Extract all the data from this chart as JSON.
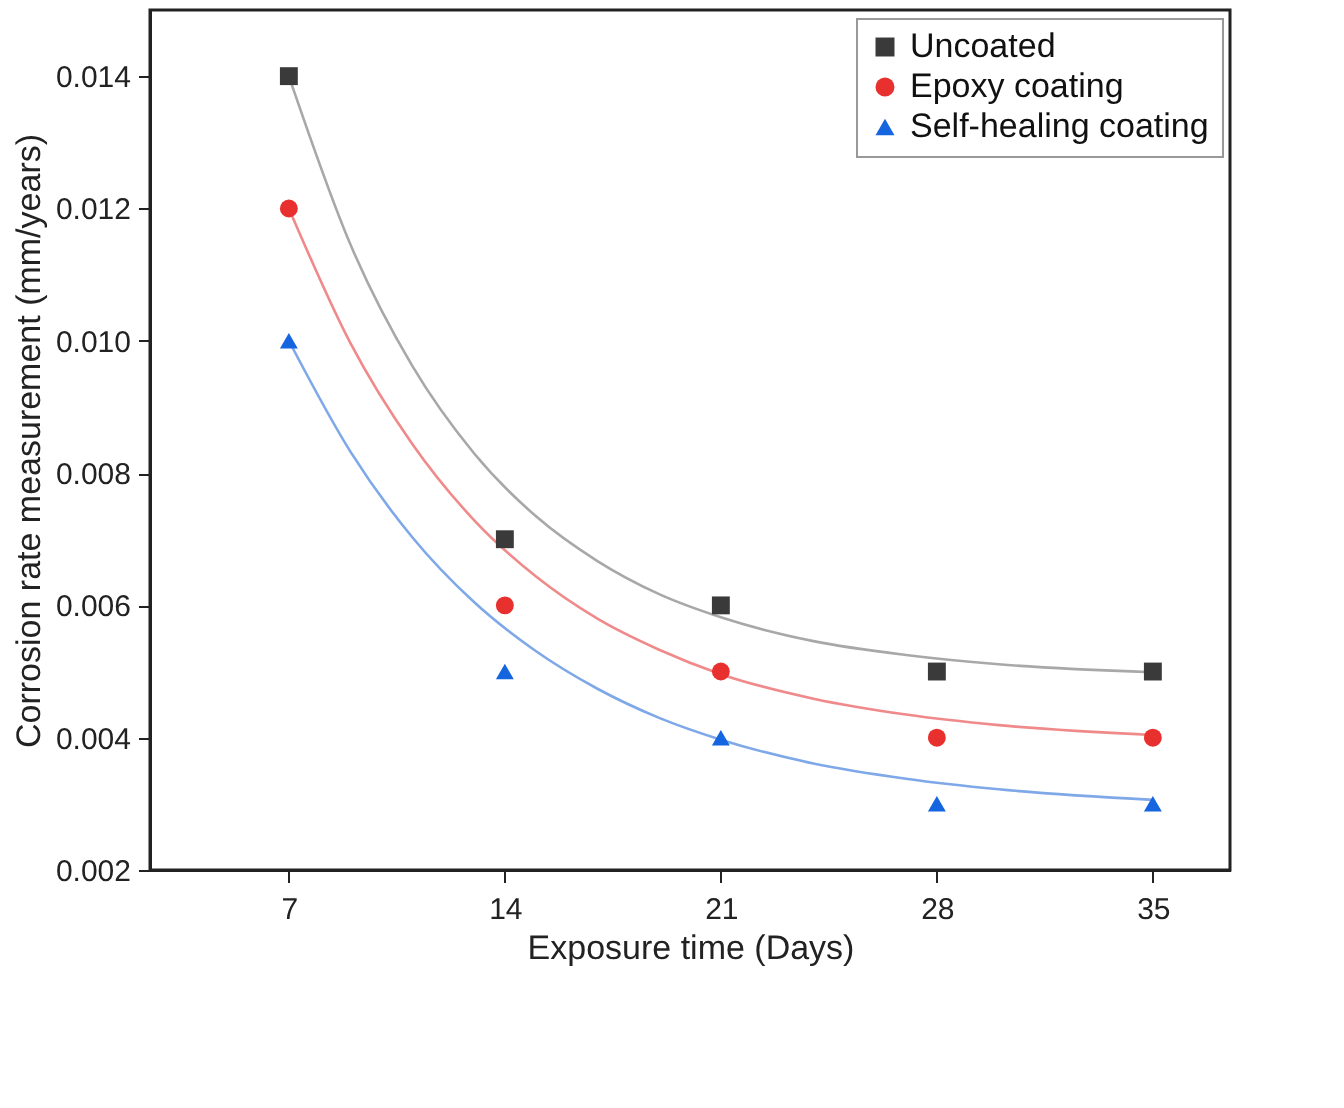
{
  "chart_data": {
    "type": "scatter",
    "xlabel": "Exposure time (Days)",
    "ylabel": "Corrosion rate measurement (mm/years)",
    "x": [
      7,
      14,
      21,
      28,
      35
    ],
    "series": [
      {
        "name": "Uncoated",
        "color": "#3a3a3a",
        "marker": "square",
        "values": [
          0.014,
          0.007,
          0.006,
          0.005,
          0.005
        ]
      },
      {
        "name": "Epoxy coating",
        "color": "#e8312f",
        "marker": "circle",
        "values": [
          0.012,
          0.006,
          0.005,
          0.004,
          0.004
        ]
      },
      {
        "name": "Self-healing coating",
        "color": "#1565e0",
        "marker": "triangle",
        "values": [
          0.01,
          0.005,
          0.004,
          0.003,
          0.003
        ]
      },
      {
        "type": "line",
        "color": "#a8a8a8",
        "x": [
          7,
          9,
          11,
          13,
          15,
          17,
          19,
          21,
          24,
          27,
          30,
          35
        ],
        "values": [
          0.014,
          0.01145,
          0.00962,
          0.0083,
          0.00735,
          0.00667,
          0.00617,
          0.00582,
          0.00546,
          0.00525,
          0.00511,
          0.00499
        ]
      },
      {
        "type": "line",
        "color": "#f08a8a",
        "x": [
          7,
          9,
          11,
          13,
          15,
          17,
          19,
          21,
          24,
          27,
          30,
          35
        ],
        "values": [
          0.012,
          0.00996,
          0.00844,
          0.00729,
          0.00644,
          0.0058,
          0.00533,
          0.00496,
          0.00459,
          0.00435,
          0.00419,
          0.00404
        ]
      },
      {
        "type": "line",
        "color": "#7fa8e8",
        "x": [
          7,
          9,
          11,
          13,
          15,
          17,
          19,
          21,
          24,
          27,
          30,
          35
        ],
        "values": [
          0.01,
          0.00832,
          0.00703,
          0.00605,
          0.00531,
          0.00474,
          0.0043,
          0.00397,
          0.00361,
          0.00338,
          0.00322,
          0.00306
        ]
      }
    ],
    "xlim": [
      2.5,
      37.5
    ],
    "xticks": [
      7,
      14,
      21,
      28,
      35
    ],
    "ylim": [
      0.002,
      0.015
    ],
    "yticks": [
      0.002,
      0.004,
      0.006,
      0.008,
      {
        "value": 0.01,
        "label": "0.010"
      },
      0.012,
      0.014
    ],
    "grid": false,
    "legend": "top right"
  }
}
